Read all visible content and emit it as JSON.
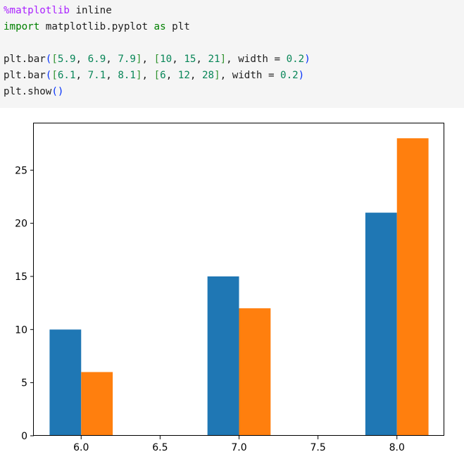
{
  "code_cell": {
    "lines": [
      [
        {
          "t": "%matplotlib",
          "c": "magic"
        },
        {
          "t": " inline",
          "c": "op"
        }
      ],
      [
        {
          "t": "import",
          "c": "kw"
        },
        {
          "t": " matplotlib.pyplot ",
          "c": "op"
        },
        {
          "t": "as",
          "c": "kw"
        },
        {
          "t": " plt",
          "c": "op"
        }
      ],
      [],
      [
        {
          "t": "plt.bar",
          "c": "op"
        },
        {
          "t": "(",
          "c": "paren"
        },
        {
          "t": "[",
          "c": "bracket"
        },
        {
          "t": "5.9",
          "c": "num"
        },
        {
          "t": ", ",
          "c": "op"
        },
        {
          "t": "6.9",
          "c": "num"
        },
        {
          "t": ", ",
          "c": "op"
        },
        {
          "t": "7.9",
          "c": "num"
        },
        {
          "t": "]",
          "c": "bracket"
        },
        {
          "t": ", ",
          "c": "op"
        },
        {
          "t": "[",
          "c": "bracket"
        },
        {
          "t": "10",
          "c": "num"
        },
        {
          "t": ", ",
          "c": "op"
        },
        {
          "t": "15",
          "c": "num"
        },
        {
          "t": ", ",
          "c": "op"
        },
        {
          "t": "21",
          "c": "num"
        },
        {
          "t": "]",
          "c": "bracket"
        },
        {
          "t": ", width = ",
          "c": "op"
        },
        {
          "t": "0.2",
          "c": "num"
        },
        {
          "t": ")",
          "c": "paren"
        }
      ],
      [
        {
          "t": "plt.bar",
          "c": "op"
        },
        {
          "t": "(",
          "c": "paren"
        },
        {
          "t": "[",
          "c": "bracket"
        },
        {
          "t": "6.1",
          "c": "num"
        },
        {
          "t": ", ",
          "c": "op"
        },
        {
          "t": "7.1",
          "c": "num"
        },
        {
          "t": ", ",
          "c": "op"
        },
        {
          "t": "8.1",
          "c": "num"
        },
        {
          "t": "]",
          "c": "bracket"
        },
        {
          "t": ", ",
          "c": "op"
        },
        {
          "t": "[",
          "c": "bracket"
        },
        {
          "t": "6",
          "c": "num"
        },
        {
          "t": ", ",
          "c": "op"
        },
        {
          "t": "12",
          "c": "num"
        },
        {
          "t": ", ",
          "c": "op"
        },
        {
          "t": "28",
          "c": "num"
        },
        {
          "t": "]",
          "c": "bracket"
        },
        {
          "t": ", width = ",
          "c": "op"
        },
        {
          "t": "0.2",
          "c": "num"
        },
        {
          "t": ")",
          "c": "paren"
        }
      ],
      [
        {
          "t": "plt.show",
          "c": "op"
        },
        {
          "t": "()",
          "c": "paren"
        }
      ]
    ]
  },
  "chart_data": {
    "type": "bar",
    "title": "",
    "xlabel": "",
    "ylabel": "",
    "xlim": [
      5.7,
      8.3
    ],
    "ylim": [
      0,
      29.4
    ],
    "xticks": [
      6.0,
      6.5,
      7.0,
      7.5,
      8.0
    ],
    "xtick_labels": [
      "6.0",
      "6.5",
      "7.0",
      "7.5",
      "8.0"
    ],
    "yticks": [
      0,
      5,
      10,
      15,
      20,
      25
    ],
    "ytick_labels": [
      "0",
      "5",
      "10",
      "15",
      "20",
      "25"
    ],
    "bar_width": 0.2,
    "grid": false,
    "series": [
      {
        "x": [
          5.9,
          6.9,
          7.9
        ],
        "values": [
          10,
          15,
          21
        ],
        "color": "#1f77b4"
      },
      {
        "x": [
          6.1,
          7.1,
          8.1
        ],
        "values": [
          6,
          12,
          28
        ],
        "color": "#ff7f0e"
      }
    ]
  }
}
